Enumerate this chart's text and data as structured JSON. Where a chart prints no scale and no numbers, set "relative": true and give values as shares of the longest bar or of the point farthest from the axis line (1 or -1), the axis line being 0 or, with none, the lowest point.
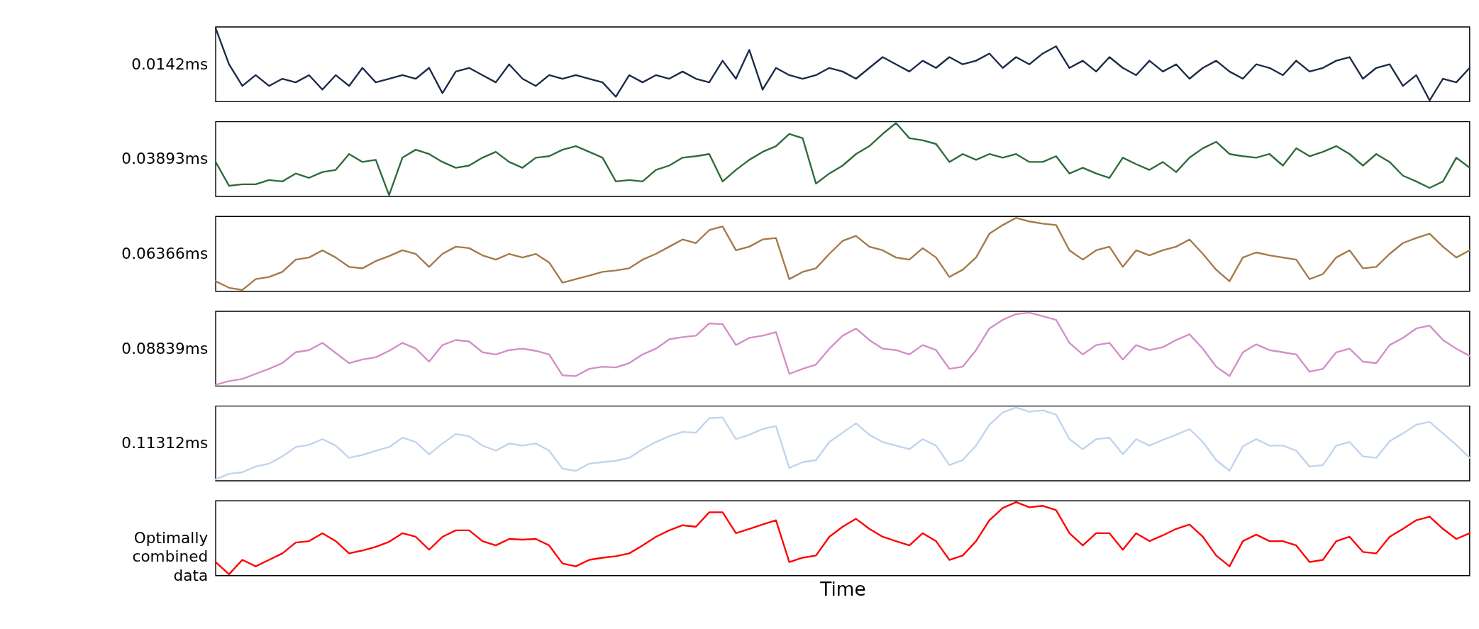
{
  "chart_data": [
    {
      "type": "line",
      "relative": true,
      "ylabel": "0.0142ms",
      "color": "#1b2a47",
      "categories": [
        null,
        null,
        null,
        null,
        null,
        null,
        null,
        null,
        null,
        null,
        null,
        null,
        null,
        null,
        null,
        null,
        null,
        null,
        null,
        null,
        null,
        null,
        null,
        null,
        null,
        null,
        null,
        null,
        null,
        null,
        null,
        null,
        null,
        null,
        null,
        null,
        null,
        null,
        null,
        null,
        null,
        null,
        null,
        null,
        null,
        null,
        null,
        null,
        null,
        null,
        null,
        null,
        null,
        null,
        null,
        null,
        null,
        null,
        null,
        null,
        null,
        null,
        null,
        null,
        null,
        null,
        null,
        null,
        null,
        null,
        null,
        null,
        null,
        null,
        null,
        null,
        null,
        null,
        null,
        null,
        null,
        null,
        null,
        null,
        null,
        null,
        null,
        null,
        null,
        null,
        null,
        null,
        null,
        null,
        null
      ],
      "values": [
        1.0,
        0.5,
        0.2,
        0.35,
        0.2,
        0.3,
        0.25,
        0.35,
        0.15,
        0.35,
        0.2,
        0.45,
        0.25,
        0.3,
        0.35,
        0.3,
        0.45,
        0.1,
        0.4,
        0.45,
        0.35,
        0.25,
        0.5,
        0.3,
        0.2,
        0.35,
        0.3,
        0.35,
        0.3,
        0.25,
        0.05,
        0.35,
        0.25,
        0.35,
        0.3,
        0.4,
        0.3,
        0.25,
        0.55,
        0.3,
        0.7,
        0.15,
        0.45,
        0.35,
        0.3,
        0.35,
        0.45,
        0.4,
        0.3,
        0.45,
        0.6,
        0.5,
        0.4,
        0.55,
        0.45,
        0.6,
        0.5,
        0.55,
        0.65,
        0.45,
        0.6,
        0.5,
        0.65,
        0.75,
        0.45,
        0.55,
        0.4,
        0.6,
        0.45,
        0.35,
        0.55,
        0.4,
        0.5,
        0.3,
        0.45,
        0.55,
        0.4,
        0.3,
        0.5,
        0.45,
        0.35,
        0.55,
        0.4,
        0.45,
        0.55,
        0.6,
        0.3,
        0.45,
        0.5,
        0.2,
        0.35,
        0.0,
        0.3,
        0.25,
        0.45
      ]
    },
    {
      "type": "line",
      "relative": true,
      "ylabel": "0.03893ms",
      "color": "#2e6b3a",
      "categories": [
        null,
        null,
        null,
        null,
        null,
        null,
        null,
        null,
        null,
        null,
        null,
        null,
        null,
        null,
        null,
        null,
        null,
        null,
        null,
        null,
        null,
        null,
        null,
        null,
        null,
        null,
        null,
        null,
        null,
        null,
        null,
        null,
        null,
        null,
        null,
        null,
        null,
        null,
        null,
        null,
        null,
        null,
        null,
        null,
        null,
        null,
        null,
        null,
        null,
        null,
        null,
        null,
        null,
        null,
        null,
        null,
        null,
        null,
        null,
        null,
        null,
        null,
        null,
        null,
        null,
        null,
        null,
        null,
        null,
        null,
        null,
        null,
        null,
        null,
        null,
        null,
        null,
        null,
        null,
        null,
        null,
        null,
        null,
        null,
        null,
        null,
        null,
        null,
        null,
        null,
        null,
        null,
        null,
        null,
        null
      ],
      "values": [
        0.46,
        0.13,
        0.15,
        0.15,
        0.21,
        0.19,
        0.3,
        0.24,
        0.32,
        0.35,
        0.57,
        0.46,
        0.49,
        0.0,
        0.52,
        0.63,
        0.57,
        0.46,
        0.38,
        0.41,
        0.52,
        0.6,
        0.46,
        0.38,
        0.52,
        0.54,
        0.63,
        0.68,
        0.6,
        0.52,
        0.19,
        0.21,
        0.19,
        0.35,
        0.41,
        0.52,
        0.54,
        0.57,
        0.19,
        0.35,
        0.49,
        0.6,
        0.68,
        0.85,
        0.79,
        0.16,
        0.3,
        0.41,
        0.57,
        0.68,
        0.85,
        1.0,
        0.79,
        0.76,
        0.71,
        0.46,
        0.57,
        0.49,
        0.57,
        0.52,
        0.57,
        0.46,
        0.46,
        0.54,
        0.3,
        0.38,
        0.3,
        0.24,
        0.52,
        0.43,
        0.35,
        0.46,
        0.32,
        0.52,
        0.65,
        0.74,
        0.57,
        0.54,
        0.52,
        0.57,
        0.41,
        0.65,
        0.54,
        0.6,
        0.68,
        0.57,
        0.41,
        0.57,
        0.46,
        0.27,
        0.19,
        0.1,
        0.19,
        0.52,
        0.38
      ]
    },
    {
      "type": "line",
      "relative": true,
      "ylabel": "0.06366ms",
      "color": "#a37a48",
      "categories": [
        null,
        null,
        null,
        null,
        null,
        null,
        null,
        null,
        null,
        null,
        null,
        null,
        null,
        null,
        null,
        null,
        null,
        null,
        null,
        null,
        null,
        null,
        null,
        null,
        null,
        null,
        null,
        null,
        null,
        null,
        null,
        null,
        null,
        null,
        null,
        null,
        null,
        null,
        null,
        null,
        null,
        null,
        null,
        null,
        null,
        null,
        null,
        null,
        null,
        null,
        null,
        null,
        null,
        null,
        null,
        null,
        null,
        null,
        null,
        null,
        null,
        null,
        null,
        null,
        null,
        null,
        null,
        null,
        null,
        null,
        null,
        null,
        null,
        null,
        null,
        null,
        null,
        null,
        null,
        null,
        null,
        null,
        null,
        null,
        null,
        null,
        null,
        null,
        null,
        null,
        null,
        null,
        null,
        null,
        null
      ],
      "values": [
        0.12,
        0.03,
        0.0,
        0.15,
        0.18,
        0.25,
        0.42,
        0.45,
        0.55,
        0.45,
        0.32,
        0.3,
        0.4,
        0.47,
        0.55,
        0.5,
        0.32,
        0.5,
        0.6,
        0.58,
        0.48,
        0.42,
        0.5,
        0.45,
        0.5,
        0.38,
        0.1,
        0.15,
        0.2,
        0.25,
        0.27,
        0.3,
        0.42,
        0.5,
        0.6,
        0.7,
        0.65,
        0.83,
        0.88,
        0.55,
        0.6,
        0.7,
        0.72,
        0.15,
        0.25,
        0.3,
        0.5,
        0.68,
        0.75,
        0.6,
        0.55,
        0.45,
        0.42,
        0.58,
        0.45,
        0.18,
        0.28,
        0.45,
        0.78,
        0.9,
        1.0,
        0.95,
        0.92,
        0.9,
        0.55,
        0.42,
        0.55,
        0.6,
        0.32,
        0.55,
        0.48,
        0.55,
        0.6,
        0.7,
        0.5,
        0.28,
        0.12,
        0.45,
        0.52,
        0.48,
        0.45,
        0.42,
        0.15,
        0.22,
        0.45,
        0.55,
        0.3,
        0.32,
        0.5,
        0.65,
        0.72,
        0.78,
        0.6,
        0.45,
        0.55
      ]
    },
    {
      "type": "line",
      "relative": true,
      "ylabel": "0.08839ms",
      "color": "#d48ec8",
      "categories": [
        null,
        null,
        null,
        null,
        null,
        null,
        null,
        null,
        null,
        null,
        null,
        null,
        null,
        null,
        null,
        null,
        null,
        null,
        null,
        null,
        null,
        null,
        null,
        null,
        null,
        null,
        null,
        null,
        null,
        null,
        null,
        null,
        null,
        null,
        null,
        null,
        null,
        null,
        null,
        null,
        null,
        null,
        null,
        null,
        null,
        null,
        null,
        null,
        null,
        null,
        null,
        null,
        null,
        null,
        null,
        null,
        null,
        null,
        null,
        null,
        null,
        null,
        null,
        null,
        null,
        null,
        null,
        null,
        null,
        null,
        null,
        null,
        null,
        null,
        null,
        null,
        null,
        null,
        null,
        null,
        null,
        null,
        null,
        null,
        null,
        null,
        null,
        null,
        null,
        null,
        null,
        null,
        null,
        null,
        null
      ],
      "values": [
        0.0,
        0.05,
        0.08,
        0.15,
        0.22,
        0.3,
        0.45,
        0.48,
        0.58,
        0.44,
        0.3,
        0.35,
        0.38,
        0.47,
        0.58,
        0.5,
        0.32,
        0.55,
        0.62,
        0.6,
        0.45,
        0.42,
        0.48,
        0.5,
        0.47,
        0.42,
        0.13,
        0.12,
        0.22,
        0.25,
        0.24,
        0.3,
        0.42,
        0.5,
        0.63,
        0.66,
        0.68,
        0.85,
        0.84,
        0.55,
        0.65,
        0.68,
        0.73,
        0.15,
        0.22,
        0.28,
        0.5,
        0.68,
        0.78,
        0.62,
        0.5,
        0.48,
        0.42,
        0.55,
        0.48,
        0.22,
        0.25,
        0.48,
        0.78,
        0.9,
        0.98,
        1.0,
        0.95,
        0.9,
        0.58,
        0.42,
        0.55,
        0.58,
        0.35,
        0.55,
        0.48,
        0.52,
        0.62,
        0.7,
        0.5,
        0.25,
        0.12,
        0.45,
        0.56,
        0.48,
        0.45,
        0.42,
        0.18,
        0.22,
        0.45,
        0.5,
        0.32,
        0.3,
        0.55,
        0.65,
        0.78,
        0.82,
        0.62,
        0.5,
        0.4
      ]
    },
    {
      "type": "line",
      "relative": true,
      "ylabel": "0.11312ms",
      "color": "#c0d4ee",
      "categories": [
        null,
        null,
        null,
        null,
        null,
        null,
        null,
        null,
        null,
        null,
        null,
        null,
        null,
        null,
        null,
        null,
        null,
        null,
        null,
        null,
        null,
        null,
        null,
        null,
        null,
        null,
        null,
        null,
        null,
        null,
        null,
        null,
        null,
        null,
        null,
        null,
        null,
        null,
        null,
        null,
        null,
        null,
        null,
        null,
        null,
        null,
        null,
        null,
        null,
        null,
        null,
        null,
        null,
        null,
        null,
        null,
        null,
        null,
        null,
        null,
        null,
        null,
        null,
        null,
        null,
        null,
        null,
        null,
        null,
        null,
        null,
        null,
        null,
        null,
        null,
        null,
        null,
        null,
        null,
        null,
        null,
        null,
        null,
        null,
        null,
        null,
        null,
        null,
        null,
        null,
        null,
        null,
        null,
        null,
        null
      ],
      "values": [
        0.0,
        0.08,
        0.1,
        0.18,
        0.22,
        0.32,
        0.45,
        0.48,
        0.56,
        0.47,
        0.3,
        0.34,
        0.4,
        0.45,
        0.58,
        0.52,
        0.35,
        0.5,
        0.63,
        0.6,
        0.47,
        0.4,
        0.5,
        0.47,
        0.5,
        0.4,
        0.15,
        0.12,
        0.22,
        0.24,
        0.26,
        0.3,
        0.42,
        0.52,
        0.6,
        0.66,
        0.65,
        0.85,
        0.86,
        0.56,
        0.62,
        0.7,
        0.74,
        0.16,
        0.24,
        0.27,
        0.52,
        0.65,
        0.78,
        0.62,
        0.52,
        0.47,
        0.42,
        0.56,
        0.47,
        0.2,
        0.27,
        0.47,
        0.76,
        0.93,
        1.0,
        0.94,
        0.96,
        0.9,
        0.56,
        0.42,
        0.56,
        0.58,
        0.35,
        0.56,
        0.47,
        0.55,
        0.62,
        0.7,
        0.52,
        0.27,
        0.12,
        0.46,
        0.56,
        0.47,
        0.47,
        0.4,
        0.18,
        0.2,
        0.47,
        0.52,
        0.32,
        0.3,
        0.53,
        0.64,
        0.76,
        0.8,
        0.64,
        0.48,
        0.3
      ]
    },
    {
      "type": "line",
      "relative": true,
      "ylabel": "Optimally combined data",
      "xlabel": "Time",
      "color": "#ff0000",
      "categories": [
        null,
        null,
        null,
        null,
        null,
        null,
        null,
        null,
        null,
        null,
        null,
        null,
        null,
        null,
        null,
        null,
        null,
        null,
        null,
        null,
        null,
        null,
        null,
        null,
        null,
        null,
        null,
        null,
        null,
        null,
        null,
        null,
        null,
        null,
        null,
        null,
        null,
        null,
        null,
        null,
        null,
        null,
        null,
        null,
        null,
        null,
        null,
        null,
        null,
        null,
        null,
        null,
        null,
        null,
        null,
        null,
        null,
        null,
        null,
        null,
        null,
        null,
        null,
        null,
        null,
        null,
        null,
        null,
        null,
        null,
        null,
        null,
        null,
        null,
        null,
        null,
        null,
        null,
        null,
        null,
        null,
        null,
        null,
        null,
        null,
        null,
        null,
        null,
        null,
        null,
        null,
        null,
        null,
        null,
        null
      ],
      "values": [
        0.17,
        0.0,
        0.2,
        0.11,
        0.2,
        0.29,
        0.44,
        0.46,
        0.57,
        0.46,
        0.29,
        0.33,
        0.38,
        0.45,
        0.57,
        0.52,
        0.34,
        0.52,
        0.61,
        0.61,
        0.46,
        0.4,
        0.49,
        0.48,
        0.49,
        0.4,
        0.15,
        0.11,
        0.2,
        0.23,
        0.25,
        0.29,
        0.4,
        0.52,
        0.61,
        0.68,
        0.66,
        0.86,
        0.86,
        0.57,
        0.63,
        0.69,
        0.75,
        0.17,
        0.23,
        0.26,
        0.52,
        0.66,
        0.77,
        0.63,
        0.52,
        0.46,
        0.4,
        0.57,
        0.46,
        0.2,
        0.26,
        0.46,
        0.75,
        0.92,
        1.0,
        0.93,
        0.95,
        0.89,
        0.57,
        0.4,
        0.57,
        0.57,
        0.34,
        0.57,
        0.46,
        0.54,
        0.63,
        0.69,
        0.52,
        0.26,
        0.11,
        0.46,
        0.55,
        0.46,
        0.46,
        0.4,
        0.17,
        0.2,
        0.46,
        0.52,
        0.31,
        0.29,
        0.52,
        0.63,
        0.75,
        0.8,
        0.63,
        0.49,
        0.57
      ]
    }
  ]
}
